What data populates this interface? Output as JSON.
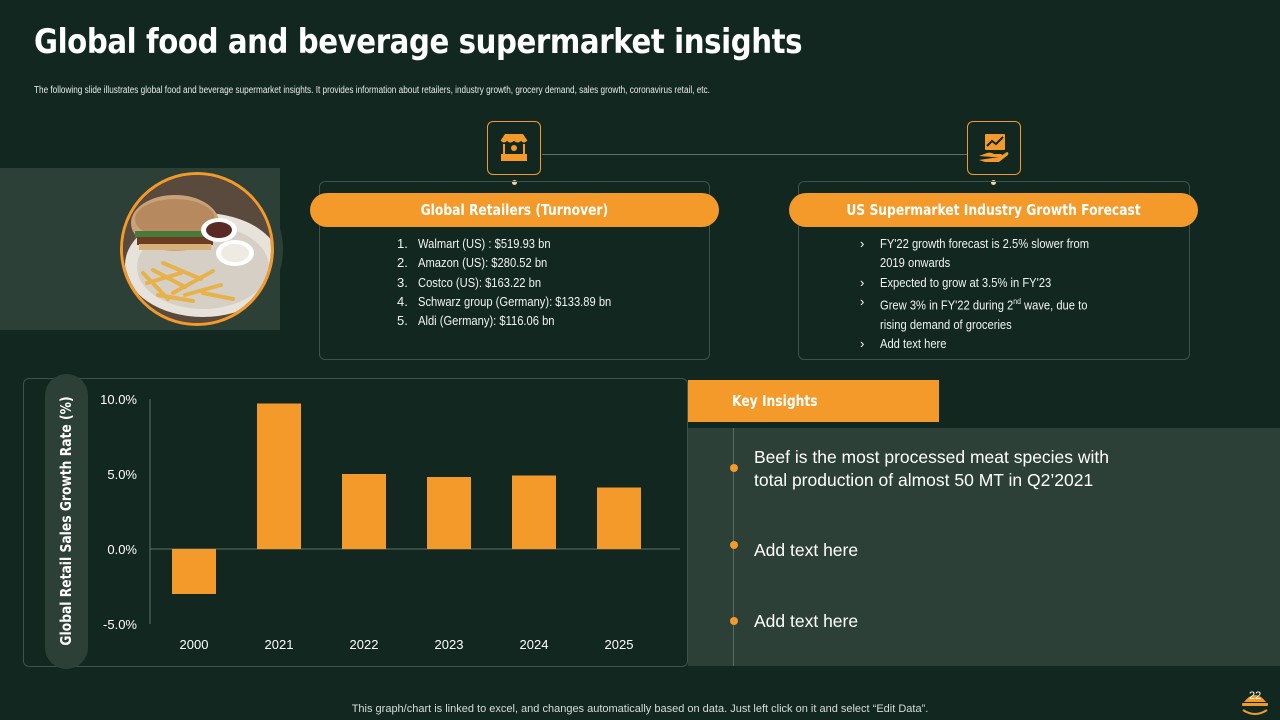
{
  "header": {
    "title": "Global food and beverage supermarket insights",
    "subtitle": "The following slide illustrates global food and beverage supermarket insights. It provides information about retailers, industry growth, grocery demand, sales growth, coronavirus retail, etc."
  },
  "icons": {
    "left": "market-stall-icon",
    "right": "growth-hand-icon"
  },
  "retailers": {
    "title": "Global Retailers (Turnover)",
    "items": [
      {
        "num": "1.",
        "text": "Walmart (US) : $519.93 bn"
      },
      {
        "num": "2.",
        "text": "Amazon (US): $280.52 bn"
      },
      {
        "num": "3.",
        "text": "Costco (US): $163.22 bn"
      },
      {
        "num": "4.",
        "text": "Schwarz group (Germany): $133.89 bn"
      },
      {
        "num": "5.",
        "text": "Aldi (Germany): $116.06 bn"
      }
    ]
  },
  "forecast": {
    "title": "US Supermarket Industry Growth Forecast",
    "bullet": "›",
    "items": [
      {
        "line1": "FY'22 growth forecast is 2.5% slower from",
        "line2": "2019 onwards"
      },
      {
        "line1": "Expected to grow at 3.5% in FY'23",
        "line2": ""
      },
      {
        "line1_a": "Grew 3% in FY'22 during 2",
        "line1_sup": "nd",
        "line1_b": " wave, due to",
        "line2": "rising demand of groceries"
      },
      {
        "line1": "Add text here",
        "line2": ""
      }
    ]
  },
  "chart_data": {
    "type": "bar",
    "title": "",
    "categories": [
      "2000",
      "2021",
      "2022",
      "2023",
      "2024",
      "2025"
    ],
    "values": [
      -3.0,
      9.7,
      5.0,
      4.8,
      4.9,
      4.1
    ],
    "ylabel": "Global Retail Sales Growth Rate (%)",
    "xlabel": "",
    "ylim": [
      -5.0,
      10.0
    ],
    "yticks": [
      10.0,
      5.0,
      0.0,
      -5.0
    ],
    "ytick_labels": [
      "10.0%",
      "5.0%",
      "0.0%",
      "-5.0%"
    ],
    "grid": false,
    "bar_color": "#f39a2a"
  },
  "insights": {
    "title": "Key Insights",
    "items": [
      {
        "line1": "Beef is the most processed meat species with",
        "line2": "total production of almost 50 MT in Q2’2021"
      },
      {
        "line1": "Add text here",
        "line2": ""
      },
      {
        "line1": "Add text here",
        "line2": ""
      }
    ]
  },
  "footer": {
    "note": "This graph/chart is linked to excel, and changes automatically based on data. Just left click on it and select “Edit Data”.",
    "page_number": "22"
  },
  "colors": {
    "background": "#12271f",
    "accent": "#f39a2a",
    "panel": "#2c4037"
  }
}
